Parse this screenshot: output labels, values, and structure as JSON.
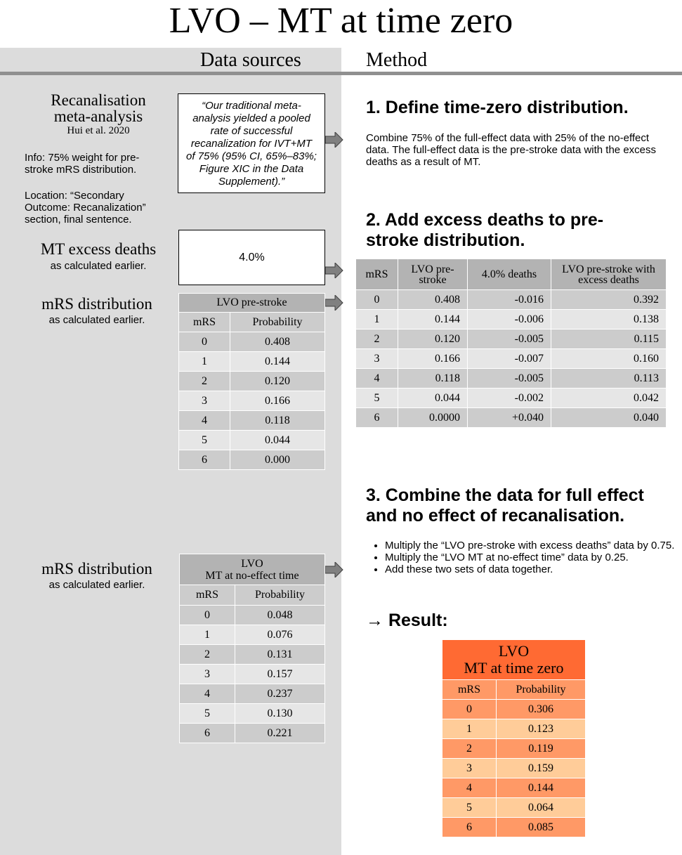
{
  "title": "LVO – MT at time zero",
  "headers": {
    "data_sources": "Data sources",
    "method": "Method"
  },
  "recan": {
    "title_line1": "Recanalisation",
    "title_line2": "meta-analysis",
    "citation": "Hui et al. 2020",
    "info": "Info: 75% weight for pre-stroke mRS distribution.",
    "location": "Location: “Secondary Outcome: Recanalization” section, final sentence.",
    "quote": "“Our traditional meta-analysis yielded a pooled rate of successful recanalization for IVT+MT of 75% (95% CI, 65%–83%; Figure XIC in the Data Supplement).”"
  },
  "excess": {
    "title": "MT excess deaths",
    "subtitle": "as calculated earlier.",
    "value": "4.0%"
  },
  "mrs1": {
    "title": "mRS distribution",
    "subtitle": "as calculated earlier.",
    "caption": "LVO pre-stroke",
    "col1": "mRS",
    "col2": "Probability",
    "rows": [
      [
        "0",
        "0.408"
      ],
      [
        "1",
        "0.144"
      ],
      [
        "2",
        "0.120"
      ],
      [
        "3",
        "0.166"
      ],
      [
        "4",
        "0.118"
      ],
      [
        "5",
        "0.044"
      ],
      [
        "6",
        "0.000"
      ]
    ]
  },
  "mrs2": {
    "title": "mRS distribution",
    "subtitle": "as calculated earlier.",
    "caption_line1": "LVO",
    "caption_line2": "MT at no-effect time",
    "col1": "mRS",
    "col2": "Probability",
    "rows": [
      [
        "0",
        "0.048"
      ],
      [
        "1",
        "0.076"
      ],
      [
        "2",
        "0.131"
      ],
      [
        "3",
        "0.157"
      ],
      [
        "4",
        "0.237"
      ],
      [
        "5",
        "0.130"
      ],
      [
        "6",
        "0.221"
      ]
    ]
  },
  "step1": {
    "heading": "1. Define time-zero distribution.",
    "text": "Combine 75% of the full-effect data with 25% of the no-effect data. The full-effect data is the pre-stroke data with the excess deaths as a result of MT."
  },
  "step2": {
    "heading_line1": "2. Add excess deaths to pre-",
    "heading_line2": "stroke distribution.",
    "cols": [
      "mRS",
      "LVO pre-stroke",
      "4.0% deaths",
      "LVO pre-stroke with excess deaths"
    ],
    "rows": [
      [
        "0",
        "0.408",
        "-0.016",
        "0.392"
      ],
      [
        "1",
        "0.144",
        "-0.006",
        "0.138"
      ],
      [
        "2",
        "0.120",
        "-0.005",
        "0.115"
      ],
      [
        "3",
        "0.166",
        "-0.007",
        "0.160"
      ],
      [
        "4",
        "0.118",
        "-0.005",
        "0.113"
      ],
      [
        "5",
        "0.044",
        "-0.002",
        "0.042"
      ],
      [
        "6",
        "0.0000",
        "+0.040",
        "0.040"
      ]
    ]
  },
  "step3": {
    "heading_line1": "3. Combine the data for full effect",
    "heading_line2": "and no effect of recanalisation.",
    "bullets": [
      "Multiply the “LVO pre-stroke with excess deaths” data by 0.75.",
      "Multiply the “LVO MT at no-effect time” data by 0.25.",
      "Add these two sets of data together."
    ]
  },
  "result": {
    "heading": "→ Result:",
    "caption_line1": "LVO",
    "caption_line2": "MT at time zero",
    "col1": "mRS",
    "col2": "Probability",
    "rows": [
      [
        "0",
        "0.306"
      ],
      [
        "1",
        "0.123"
      ],
      [
        "2",
        "0.119"
      ],
      [
        "3",
        "0.159"
      ],
      [
        "4",
        "0.144"
      ],
      [
        "5",
        "0.064"
      ],
      [
        "6",
        "0.085"
      ]
    ]
  }
}
